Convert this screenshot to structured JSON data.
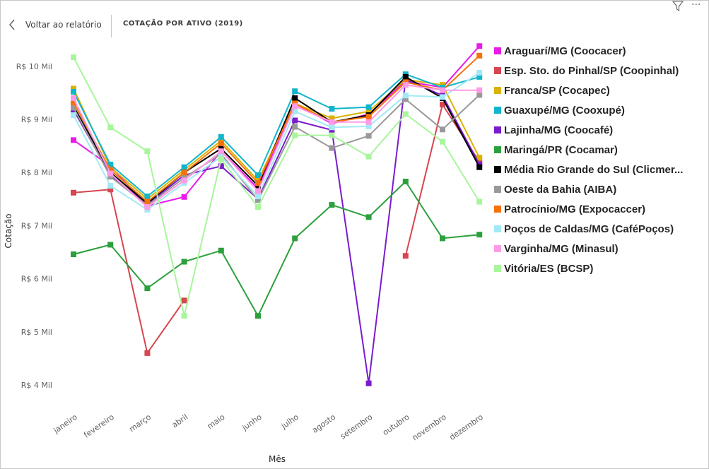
{
  "header": {
    "back_label": "Voltar ao relatório",
    "page_title": "COTAÇÃO POR ATIVO (2019)"
  },
  "icons": {
    "back": "chevron-left-icon",
    "filter": "filter-icon",
    "more": "more-options-icon",
    "more_glyph": "···"
  },
  "chart_data": {
    "type": "line",
    "xlabel": "Mês",
    "ylabel": "Cotação",
    "categories": [
      "janeiro",
      "fevereiro",
      "março",
      "abril",
      "maio",
      "junho",
      "julho",
      "agosto",
      "setembro",
      "outubro",
      "novembro",
      "dezembro"
    ],
    "ylim": [
      3.8,
      10.45
    ],
    "yticks": [
      {
        "value": 4,
        "label": "R$ 4 Mil"
      },
      {
        "value": 5,
        "label": "R$ 5 Mil"
      },
      {
        "value": 6,
        "label": "R$ 6 Mil"
      },
      {
        "value": 7,
        "label": "R$ 7 Mil"
      },
      {
        "value": 8,
        "label": "R$ 8 Mil"
      },
      {
        "value": 9,
        "label": "R$ 9 Mil"
      },
      {
        "value": 10,
        "label": "R$ 10 Mil"
      }
    ],
    "grid": false,
    "legend_position": "right",
    "series": [
      {
        "name": "Araguarí/MG (Coocacer)",
        "color": "#e81be8",
        "values": [
          8.61,
          8.12,
          7.37,
          7.54,
          8.4,
          7.7,
          9.3,
          8.92,
          9.1,
          9.72,
          9.6,
          10.38
        ]
      },
      {
        "name": "Esp. Sto. do Pinhal/SP (Coopinhal)",
        "color": "#d64550",
        "values": [
          7.62,
          7.68,
          4.6,
          5.59,
          null,
          null,
          null,
          null,
          null,
          6.43,
          9.28,
          8.2
        ]
      },
      {
        "name": "Franca/SP (Cocapec)",
        "color": "#d9b300",
        "values": [
          9.58,
          8.1,
          7.5,
          8.05,
          8.6,
          7.85,
          9.3,
          9.02,
          9.15,
          9.75,
          9.65,
          8.28
        ]
      },
      {
        "name": "Guaxupé/MG (Cooxupé)",
        "color": "#12b5cb",
        "values": [
          9.52,
          8.15,
          7.55,
          8.1,
          8.67,
          7.95,
          9.53,
          9.2,
          9.23,
          9.85,
          9.6,
          9.8
        ]
      },
      {
        "name": "Lajinha/MG (Coocafé)",
        "color": "#7a1bcc",
        "values": [
          9.18,
          7.95,
          7.4,
          7.95,
          8.12,
          7.5,
          8.98,
          8.8,
          4.03,
          9.75,
          9.45,
          8.15
        ]
      },
      {
        "name": "Maringá/PR (Cocamar)",
        "color": "#2ca03c",
        "values": [
          6.46,
          6.64,
          5.82,
          6.32,
          6.53,
          5.3,
          6.76,
          7.39,
          7.16,
          7.83,
          6.76,
          6.83
        ]
      },
      {
        "name": "Média Rio Grande do Sul (Clicmer...",
        "color": "#000000",
        "values": [
          9.25,
          8.0,
          7.42,
          8.0,
          8.45,
          7.75,
          9.4,
          8.95,
          9.08,
          9.8,
          9.4,
          8.1
        ]
      },
      {
        "name": "Oeste da Bahia (AIBA)",
        "color": "#999999",
        "values": [
          9.22,
          7.92,
          7.38,
          7.9,
          8.35,
          7.48,
          8.86,
          8.46,
          8.69,
          9.38,
          8.81,
          9.46
        ]
      },
      {
        "name": "Patrocínio/MG (Expocaccer)",
        "color": "#f5720a",
        "values": [
          9.32,
          8.05,
          7.45,
          8.0,
          8.55,
          7.8,
          9.3,
          8.95,
          9.05,
          9.7,
          9.55,
          10.2
        ]
      },
      {
        "name": "Poços de Caldas/MG (CaféPoços)",
        "color": "#a3e9f5",
        "values": [
          9.08,
          7.75,
          7.3,
          7.8,
          8.3,
          7.55,
          9.15,
          8.85,
          8.87,
          9.45,
          9.42,
          9.88
        ]
      },
      {
        "name": "Varginha/MG (Minasul)",
        "color": "#ff9be6",
        "values": [
          9.4,
          7.98,
          7.35,
          7.85,
          8.4,
          7.65,
          9.25,
          8.95,
          8.95,
          9.65,
          9.55,
          9.55
        ]
      },
      {
        "name": "Vitória/ES (BCSP)",
        "color": "#a8f59c",
        "values": [
          10.17,
          8.85,
          8.4,
          5.3,
          8.25,
          7.35,
          8.7,
          8.7,
          8.3,
          9.1,
          8.58,
          7.45
        ]
      }
    ]
  }
}
